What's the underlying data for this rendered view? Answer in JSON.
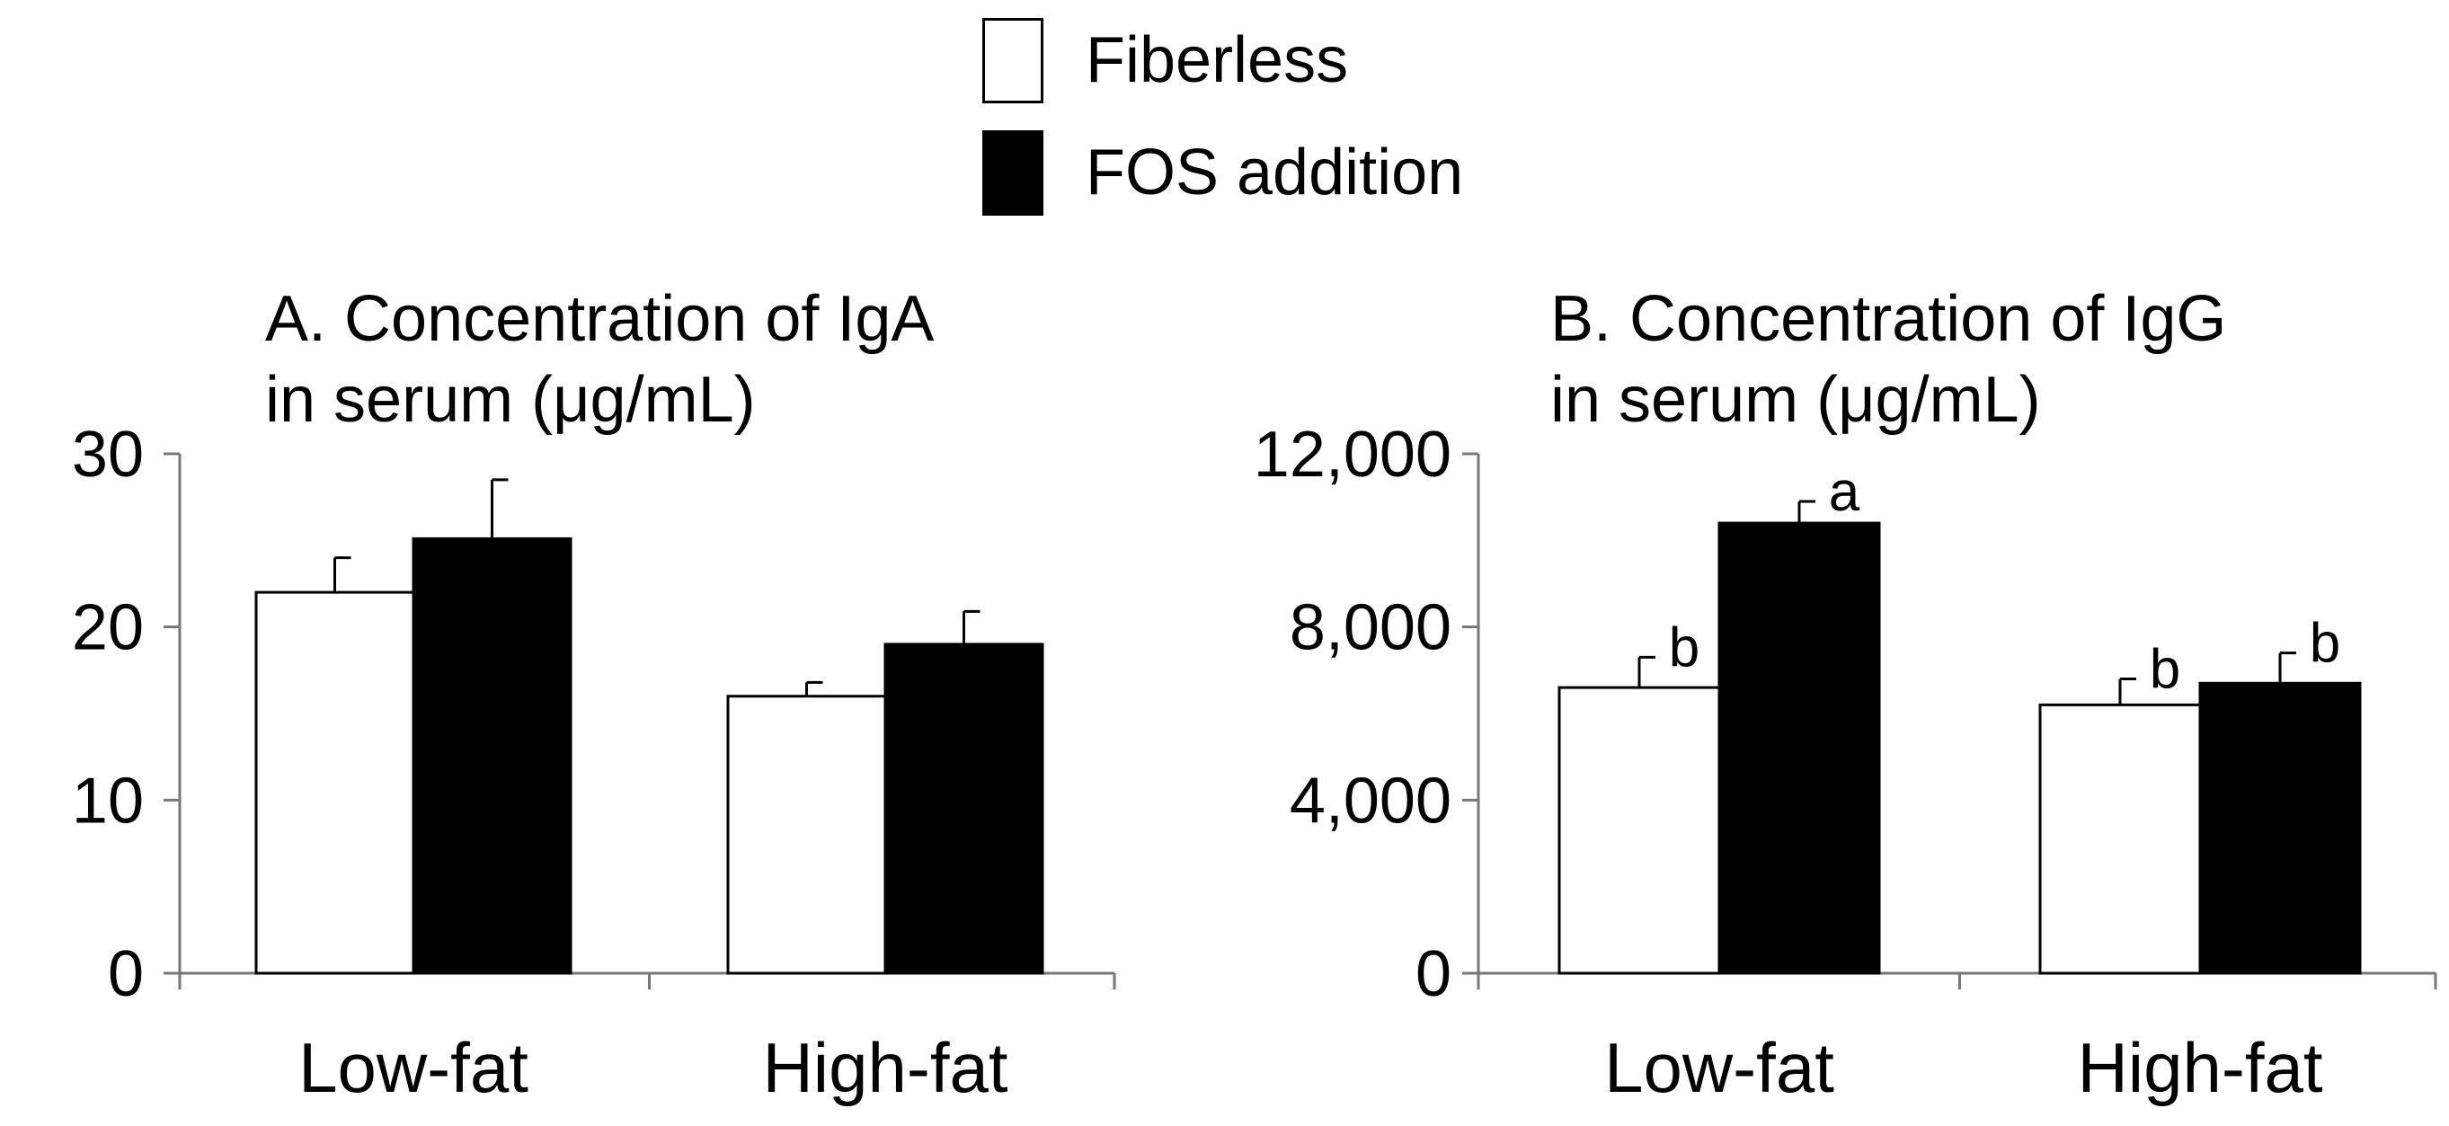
{
  "legend": {
    "items": [
      {
        "label": "Fiberless",
        "color": "#ffffff"
      },
      {
        "label": "FOS addition",
        "color": "#000000"
      }
    ]
  },
  "chart_data": [
    {
      "type": "bar",
      "title": "A. Concentration of IgA",
      "title_line2": "in serum (μg/mL)",
      "categories": [
        "Low-fat",
        "High-fat"
      ],
      "series": [
        {
          "name": "Fiberless",
          "values": [
            22,
            16
          ],
          "errors": [
            2,
            0.8
          ],
          "labels": [
            "",
            ""
          ]
        },
        {
          "name": "FOS addition",
          "values": [
            25.1,
            19
          ],
          "errors": [
            3.4,
            1.9
          ],
          "labels": [
            "",
            ""
          ]
        }
      ],
      "ylim": [
        0,
        30
      ],
      "yticks": [
        0,
        10,
        20,
        30
      ],
      "ytick_labels": [
        "0",
        "10",
        "20",
        "30"
      ],
      "xlabel": "",
      "ylabel": ""
    },
    {
      "type": "bar",
      "title": "B. Concentration of IgG",
      "title_line2": "in serum (μg/mL)",
      "categories": [
        "Low-fat",
        "High-fat"
      ],
      "series": [
        {
          "name": "Fiberless",
          "values": [
            6600,
            6200
          ],
          "errors": [
            700,
            600
          ],
          "labels": [
            "b",
            "b"
          ]
        },
        {
          "name": "FOS addition",
          "values": [
            10400,
            6700
          ],
          "errors": [
            500,
            700
          ],
          "labels": [
            "a",
            "b"
          ]
        }
      ],
      "ylim": [
        0,
        12000
      ],
      "yticks": [
        0,
        4000,
        8000,
        12000
      ],
      "ytick_labels": [
        "0",
        "4,000",
        "8,000",
        "12,000"
      ],
      "xlabel": "",
      "ylabel": ""
    }
  ]
}
